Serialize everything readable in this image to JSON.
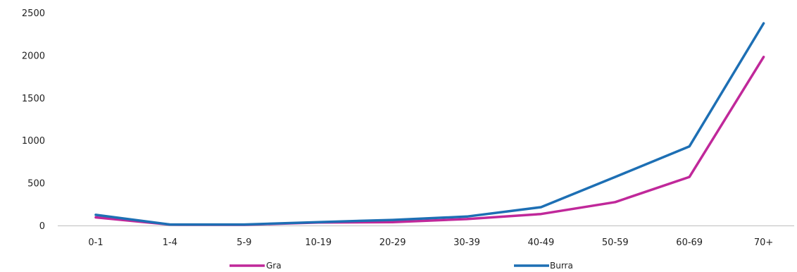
{
  "chart_data": {
    "type": "line",
    "categories": [
      "0-1",
      "1-4",
      "5-9",
      "10-19",
      "20-29",
      "30-39",
      "40-49",
      "50-59",
      "60-69",
      "70+"
    ],
    "series": [
      {
        "name": "Gra",
        "color": "#C0289A",
        "values": [
          95,
          10,
          8,
          35,
          40,
          75,
          135,
          275,
          570,
          1980
        ]
      },
      {
        "name": "Burra",
        "color": "#1D6FB4",
        "values": [
          125,
          12,
          12,
          40,
          65,
          105,
          215,
          570,
          930,
          2375
        ]
      }
    ],
    "title": "",
    "xlabel": "",
    "ylabel": "",
    "ylim": [
      0,
      2500
    ],
    "yticks": [
      0,
      500,
      1000,
      1500,
      2000,
      2500
    ],
    "grid": false,
    "legend_position": "bottom"
  }
}
